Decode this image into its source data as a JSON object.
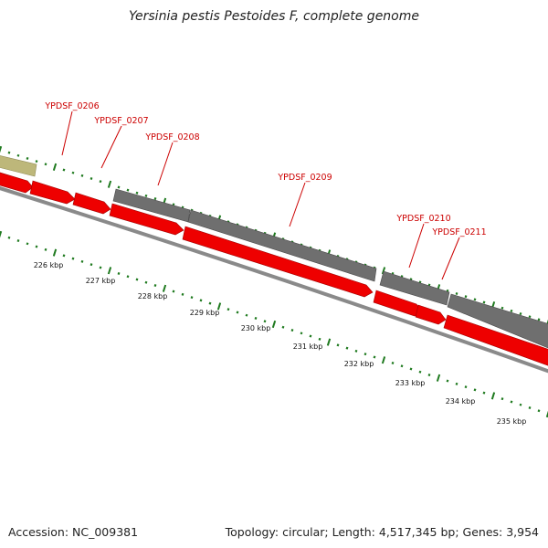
{
  "title": "Yersinia pestis Pestoides F, complete genome",
  "footer": {
    "accession": "Accession: NC_009381",
    "summary": "Topology: circular; Length: 4,517,345 bp; Genes: 3,954"
  },
  "colors": {
    "forward_gene": "#ee0000",
    "reverse_gene": "#6f6f6f",
    "other_feature": "#bdb77a",
    "backbone": "#8a8a8a",
    "tick": "#1f7a1f",
    "label_text": "#cc0000",
    "leader_line": "#cc0000"
  },
  "gene_labels": [
    {
      "text": "YPDSF_0206",
      "gene": "YPDSF_0206"
    },
    {
      "text": "YPDSF_0207",
      "gene": "YPDSF_0207"
    },
    {
      "text": "YPDSF_0208",
      "gene": "YPDSF_0208"
    },
    {
      "text": "YPDSF_0209",
      "gene": "YPDSF_0209"
    },
    {
      "text": "YPDSF_0210",
      "gene": "YPDSF_0210"
    },
    {
      "text": "YPDSF_0211",
      "gene": "YPDSF_0211"
    }
  ],
  "kbp_ticks": [
    "226 kbp",
    "227 kbp",
    "228 kbp",
    "229 kbp",
    "230 kbp",
    "231 kbp",
    "232 kbp",
    "233 kbp",
    "234 kbp",
    "235 kbp"
  ]
}
